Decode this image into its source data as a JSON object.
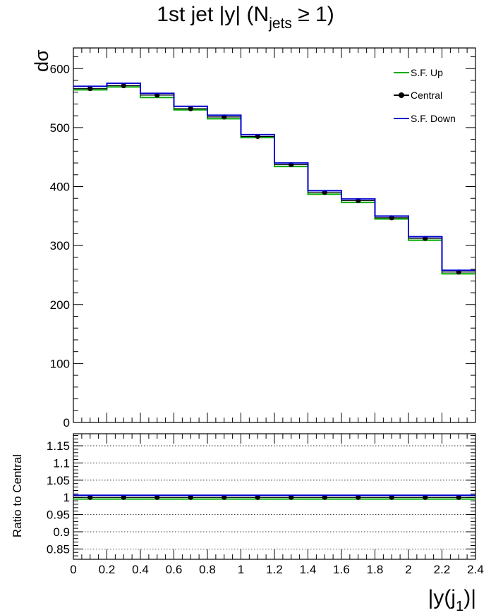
{
  "chart_data": {
    "type": "line",
    "title": "1st jet |y| (N",
    "title_sub": "jets",
    "title_suffix": " ≥ 1)",
    "ylabel": "dσ",
    "xlabel_pre": "|y(j",
    "xlabel_sub": "1",
    "xlabel_post": ")|",
    "ratio_ylabel": "Ratio to Central",
    "bin_edges": [
      0,
      0.2,
      0.4,
      0.6,
      0.8,
      1.0,
      1.2,
      1.4,
      1.6,
      1.8,
      2.0,
      2.2,
      2.4
    ],
    "series": [
      {
        "name": "S.F. Up",
        "color": "#00aa00",
        "style": "step",
        "values": [
          564,
          569,
          551,
          530,
          515,
          483,
          434,
          387,
          373,
          345,
          309,
          252
        ]
      },
      {
        "name": "Central",
        "color": "#000000",
        "style": "markers",
        "values": [
          566,
          571,
          555,
          532,
          518,
          485,
          437,
          390,
          376,
          347,
          312,
          255
        ]
      },
      {
        "name": "S.F. Down",
        "color": "#0000cc",
        "style": "step",
        "values": [
          570,
          575,
          558,
          536,
          521,
          488,
          440,
          393,
          379,
          350,
          315,
          258
        ]
      }
    ],
    "ratio_series": [
      {
        "name": "S.F. Up",
        "color": "#00aa00",
        "value": 0.995
      },
      {
        "name": "Central",
        "color": "#000000",
        "value": 1.0
      },
      {
        "name": "S.F. Down",
        "color": "#0000cc",
        "value": 1.006
      }
    ],
    "xlim": [
      0,
      2.4
    ],
    "ylim": [
      0,
      635
    ],
    "ratio_ylim": [
      0.82,
      1.185
    ],
    "x_ticks": [
      "0",
      "0.2",
      "0.4",
      "0.6",
      "0.8",
      "1",
      "1.2",
      "1.4",
      "1.6",
      "1.8",
      "2",
      "2.2",
      "2.4"
    ],
    "y_ticks": [
      "0",
      "100",
      "200",
      "300",
      "400",
      "500",
      "600"
    ],
    "ratio_y_ticks": [
      "0.85",
      "0.9",
      "0.95",
      "1",
      "1.05",
      "1.1",
      "1.15"
    ],
    "legend_position": "top-right",
    "ratio_grid": true
  }
}
